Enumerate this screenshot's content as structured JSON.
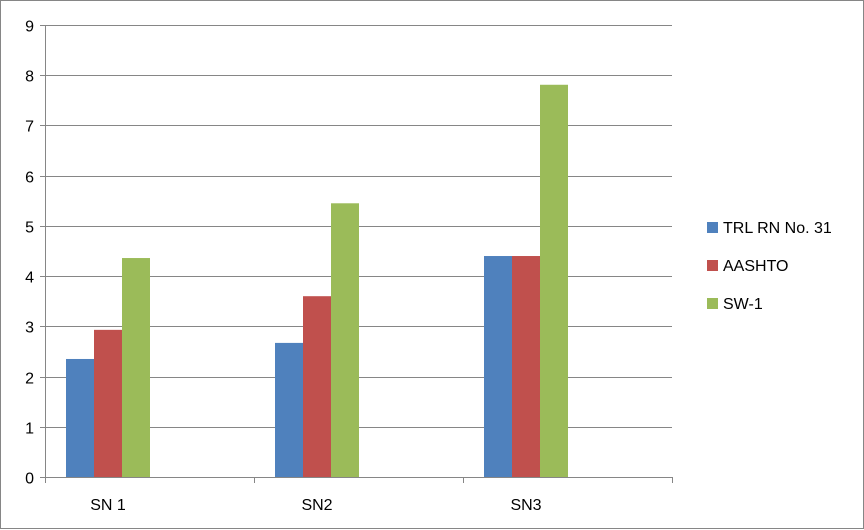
{
  "chart_data": {
    "type": "bar",
    "title": "",
    "xlabel": "",
    "ylabel": "",
    "categories": [
      "SN 1",
      "SN2",
      "SN3"
    ],
    "ylim": [
      0,
      9
    ],
    "yticks": [
      0,
      1,
      2,
      3,
      4,
      5,
      6,
      7,
      8,
      9
    ],
    "grid": true,
    "legend_position": "right",
    "series": [
      {
        "name": "TRL RN No. 31",
        "color": "#4f81bd",
        "values": [
          2.35,
          2.67,
          4.4
        ]
      },
      {
        "name": "AASHTO",
        "color": "#c0504d",
        "values": [
          2.93,
          3.6,
          4.4
        ]
      },
      {
        "name": "SW-1",
        "color": "#9bbb59",
        "values": [
          4.36,
          5.45,
          7.81
        ]
      }
    ]
  }
}
